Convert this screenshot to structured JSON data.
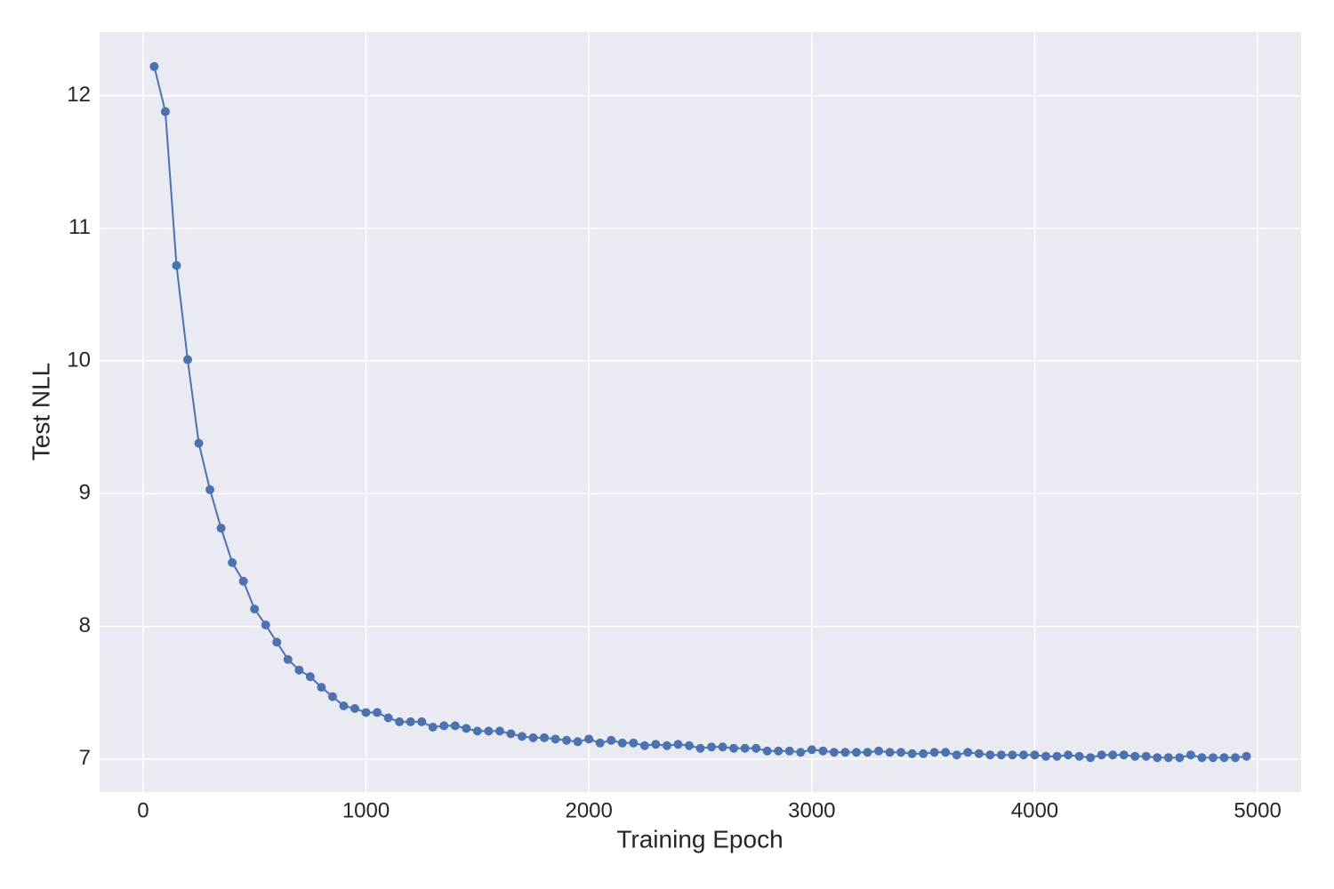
{
  "chart_data": {
    "type": "line",
    "xlabel": "Training Epoch",
    "ylabel": "Test NLL",
    "x": [
      50,
      100,
      150,
      200,
      250,
      300,
      350,
      400,
      450,
      500,
      550,
      600,
      650,
      700,
      750,
      800,
      850,
      900,
      950,
      1000,
      1050,
      1100,
      1150,
      1200,
      1250,
      1300,
      1350,
      1400,
      1450,
      1500,
      1550,
      1600,
      1650,
      1700,
      1750,
      1800,
      1850,
      1900,
      1950,
      2000,
      2050,
      2100,
      2150,
      2200,
      2250,
      2300,
      2350,
      2400,
      2450,
      2500,
      2550,
      2600,
      2650,
      2700,
      2750,
      2800,
      2850,
      2900,
      2950,
      3000,
      3050,
      3100,
      3150,
      3200,
      3250,
      3300,
      3350,
      3400,
      3450,
      3500,
      3550,
      3600,
      3650,
      3700,
      3750,
      3800,
      3850,
      3900,
      3950,
      4000,
      4050,
      4100,
      4150,
      4200,
      4250,
      4300,
      4350,
      4400,
      4450,
      4500,
      4550,
      4600,
      4650,
      4700,
      4750,
      4800,
      4850,
      4900,
      4950
    ],
    "series": [
      {
        "name": "Test NLL",
        "color": "#4c72b0",
        "values": [
          12.22,
          11.88,
          10.72,
          10.01,
          9.38,
          9.03,
          8.74,
          8.48,
          8.34,
          8.13,
          8.01,
          7.88,
          7.75,
          7.67,
          7.62,
          7.54,
          7.47,
          7.4,
          7.38,
          7.35,
          7.35,
          7.31,
          7.28,
          7.28,
          7.28,
          7.24,
          7.25,
          7.25,
          7.23,
          7.21,
          7.21,
          7.21,
          7.19,
          7.17,
          7.16,
          7.16,
          7.15,
          7.14,
          7.13,
          7.15,
          7.12,
          7.14,
          7.12,
          7.12,
          7.1,
          7.11,
          7.1,
          7.11,
          7.1,
          7.08,
          7.09,
          7.09,
          7.08,
          7.08,
          7.08,
          7.06,
          7.06,
          7.06,
          7.05,
          7.07,
          7.06,
          7.05,
          7.05,
          7.05,
          7.05,
          7.06,
          7.05,
          7.05,
          7.04,
          7.04,
          7.05,
          7.05,
          7.03,
          7.05,
          7.04,
          7.03,
          7.03,
          7.03,
          7.03,
          7.03,
          7.02,
          7.02,
          7.03,
          7.02,
          7.01,
          7.03,
          7.03,
          7.03,
          7.02,
          7.02,
          7.01,
          7.01,
          7.01,
          7.03,
          7.01,
          7.01,
          7.01,
          7.01,
          7.02
        ]
      }
    ],
    "xlim": [
      -195,
      5195
    ],
    "ylim": [
      6.75,
      12.48
    ],
    "xticks": [
      0,
      1000,
      2000,
      3000,
      4000,
      5000
    ],
    "yticks": [
      7,
      8,
      9,
      10,
      11,
      12
    ],
    "grid": true
  }
}
